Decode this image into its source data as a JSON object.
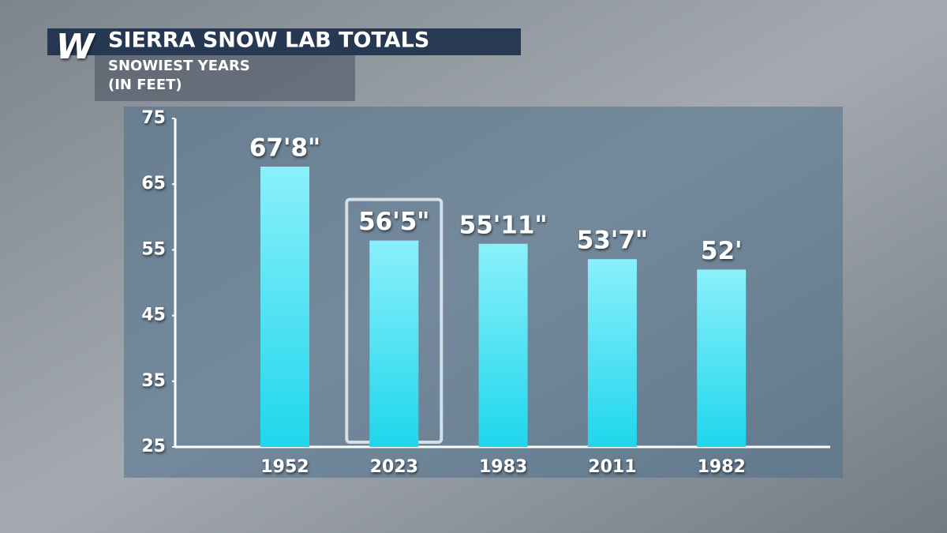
{
  "brand": "W",
  "chart_data": {
    "type": "bar",
    "title": "SIERRA SNOW LAB TOTALS",
    "subtitle": [
      "SNOWIEST YEARS",
      "(IN FEET)"
    ],
    "categories": [
      "1952",
      "2023",
      "1983",
      "2011",
      "1982"
    ],
    "values": [
      67.667,
      56.417,
      55.917,
      53.583,
      52
    ],
    "value_labels": [
      "67'8\"",
      "56'5\"",
      "55'11\"",
      "53'7\"",
      "52'"
    ],
    "color": "#22d8ee",
    "highlight": "2023",
    "ylim": [
      25,
      75
    ],
    "yticks": [
      25,
      35,
      45,
      55,
      65,
      75
    ],
    "grid": false
  }
}
